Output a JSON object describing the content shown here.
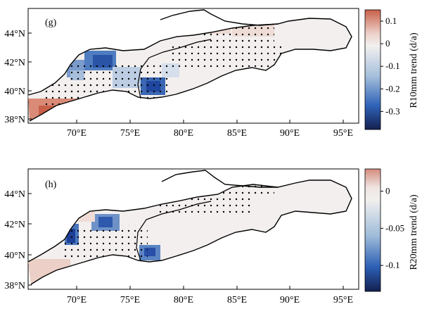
{
  "panels": [
    {
      "letter": "(g)",
      "colorbar_label": "R10mm trend (d/a)",
      "colorbar_ticks": [
        "0.1",
        "0",
        "-0.1",
        "-0.2",
        "-0.3"
      ],
      "colorbar_tick_values": [
        0.1,
        0,
        -0.1,
        -0.2,
        -0.3
      ],
      "colorbar_range": [
        -0.38,
        0.15
      ],
      "lat_ticks": [
        "44°N",
        "42°N",
        "40°N",
        "38°N"
      ],
      "lon_ticks": [
        "70°E",
        "75°E",
        "80°E",
        "85°E",
        "90°E",
        "95°E"
      ]
    },
    {
      "letter": "(h)",
      "colorbar_label": "R20mm trend (d/a)",
      "colorbar_ticks": [
        "0",
        "-0.05",
        "-0.1"
      ],
      "colorbar_tick_values": [
        0,
        -0.05,
        -0.1
      ],
      "colorbar_range": [
        -0.135,
        0.03
      ],
      "lat_ticks": [
        "44°N",
        "42°N",
        "40°N",
        "38°N"
      ],
      "lon_ticks": [
        "70°E",
        "75°E",
        "80°E",
        "85°E",
        "90°E",
        "95°E"
      ]
    }
  ],
  "colors": {
    "positive": "#c8604a",
    "neutral": "#f3f0ef",
    "negative": "#1a3fa8",
    "deep_negative": "#14204f",
    "outline": "#000000"
  }
}
